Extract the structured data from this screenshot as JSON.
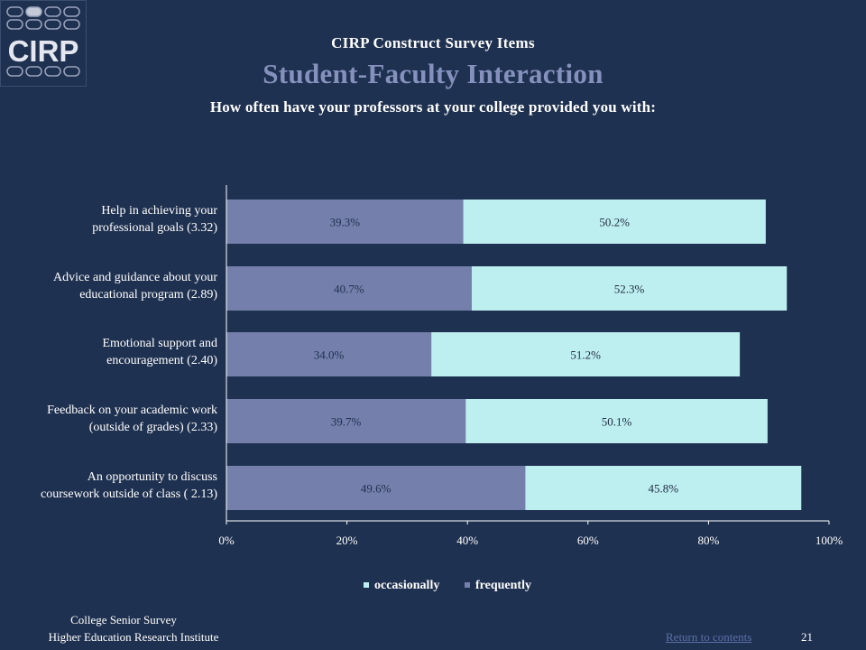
{
  "logo": {
    "text": "CIRP"
  },
  "header": {
    "pre_title": "CIRP Construct Survey Items",
    "title": "Student-Faculty Interaction",
    "question": "How often have your professors at your college provided you with:"
  },
  "colors": {
    "background": "#1f3150",
    "frequently": "#747fab",
    "occasionally": "#bdeff0",
    "title_accent": "#8591bd",
    "axis": "#ffffff",
    "link": "#5b6fa8"
  },
  "chart_data": {
    "type": "bar",
    "orientation": "horizontal",
    "stacked": true,
    "categories": [
      [
        "Help in achieving your",
        "professional goals (3.32)"
      ],
      [
        "Advice and guidance about your",
        "educational program (2.89)"
      ],
      [
        "Emotional support and",
        "encouragement (2.40)"
      ],
      [
        "Feedback on your academic work",
        "(outside of grades) (2.33)"
      ],
      [
        "An opportunity to discuss",
        "coursework outside of class ( 2.13)"
      ]
    ],
    "series": [
      {
        "name": "frequently",
        "values": [
          39.3,
          40.7,
          34.0,
          39.7,
          49.6
        ],
        "labels": [
          "39.3%",
          "40.7%",
          "34.0%",
          "39.7%",
          "49.6%"
        ]
      },
      {
        "name": "occasionally",
        "values": [
          50.2,
          52.3,
          51.2,
          50.1,
          45.8
        ],
        "labels": [
          "50.2%",
          "52.3%",
          "51.2%",
          "50.1%",
          "45.8%"
        ]
      }
    ],
    "xlim": [
      0,
      100
    ],
    "xticks": [
      "0%",
      "20%",
      "40%",
      "60%",
      "80%",
      "100%"
    ],
    "legend": {
      "placement": "bottom",
      "entries": [
        "occasionally",
        "frequently"
      ]
    },
    "grid": false
  },
  "footer": {
    "survey": "College Senior Survey",
    "institute": "Higher Education Research Institute",
    "return_link": "Return to contents",
    "page_number": "21"
  }
}
